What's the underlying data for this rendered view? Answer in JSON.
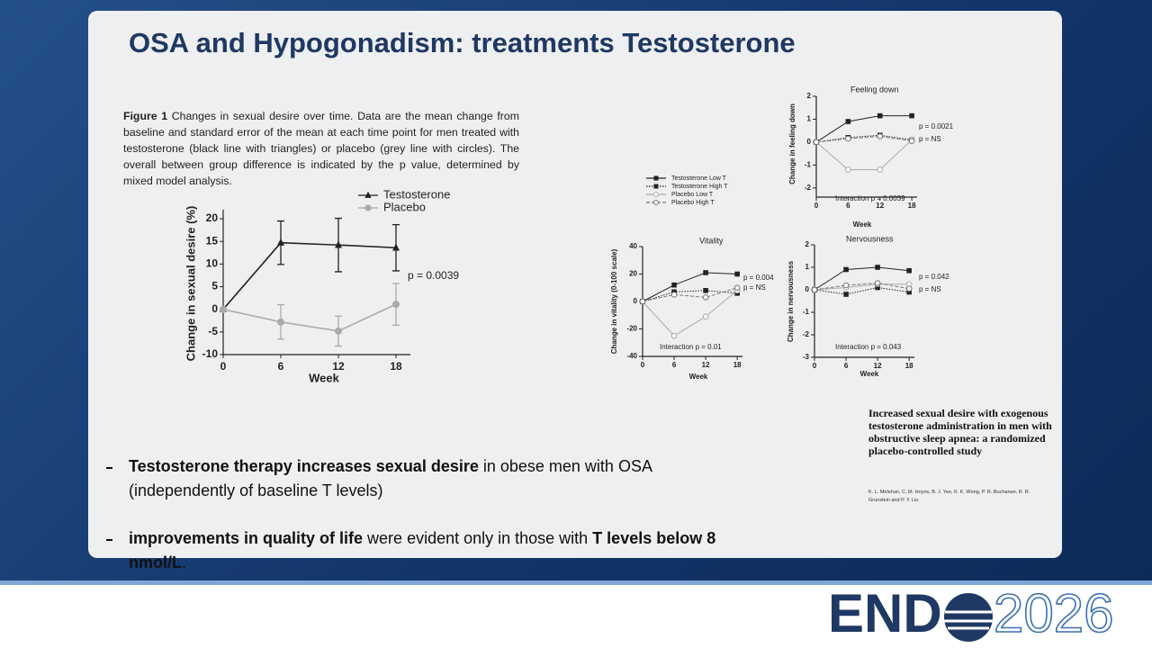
{
  "slide": {
    "title": "OSA and Hypogonadism: treatments Testosterone",
    "caption": [
      {
        "text": "Figure 1",
        "bold": true
      },
      {
        "text": " Changes in sexual desire over time. Data are the mean change from baseline and standard error of the mean at each time point for men treated with testosterone (black line with triangles) or placebo (grey line with circles). The overall between group difference is indicated by the p value, determined by mixed model analysis."
      }
    ],
    "bullets": [
      [
        {
          "text": "Testosterone therapy increases sexual desire",
          "bold": true
        },
        {
          "text": " in obese men with OSA (independently of baseline T levels)"
        }
      ],
      [
        {
          "text": "improvements in quality of life",
          "bold": true
        },
        {
          "text": " were evident only in those with "
        },
        {
          "text": "T levels below 8 nmol/L",
          "bold": true
        },
        {
          "text": "."
        }
      ]
    ],
    "citation": {
      "title": "Increased sexual desire with exogenous testosterone administration in men with obstructive sleep apnea: a randomized placebo-controlled study",
      "authors": "K. L. Melehan, C. M. Hoyos, B. J. Yee, K. K. Wong, P. R. Buchanan, R. R. Grunstein and P. Y. Liu"
    },
    "logo": {
      "left": "END",
      "right": "2026"
    }
  },
  "chart_data": [
    {
      "type": "line",
      "x": [
        0,
        6,
        12,
        18
      ],
      "xlim": [
        0,
        19.5
      ],
      "xticks": [
        0,
        6,
        12,
        18
      ],
      "ylim": [
        -10,
        22
      ],
      "yticks": [
        -10,
        -5,
        0,
        5,
        10,
        15,
        20
      ],
      "xlabel": "Week",
      "ylabel": "Change in sexual desire (%)",
      "annotations": [
        "p = 0.0039"
      ],
      "series": [
        {
          "name": "Testosterone",
          "color": "#222222",
          "marker": "triangle",
          "dash": "solid",
          "values": [
            0,
            14.7,
            14.2,
            13.6
          ],
          "errors": [
            0,
            4.8,
            5.9,
            5.1
          ]
        },
        {
          "name": "Placebo",
          "color": "#aaaaaa",
          "marker": "circle",
          "dash": "solid",
          "values": [
            0,
            -2.8,
            -4.8,
            1.1
          ],
          "errors": [
            0,
            3.8,
            3.3,
            4.6
          ]
        }
      ]
    },
    {
      "type": "line",
      "title": "Feeling down",
      "x": [
        0,
        6,
        12,
        18
      ],
      "xlim": [
        0,
        19
      ],
      "xticks": [
        0,
        6,
        12,
        18
      ],
      "ylim": [
        -2.4,
        2
      ],
      "yticks": [
        -2,
        -1,
        0,
        1,
        2
      ],
      "xlabel": "Week",
      "ylabel": "Change in feeling down",
      "annotations": [
        "p = 0.0021",
        "p = NS",
        "Interaction p = 0.0039"
      ],
      "series": [
        {
          "name": "Testosterone Low T",
          "color": "#222222",
          "marker": "square",
          "dash": "solid",
          "values": [
            0,
            0.9,
            1.15,
            1.15
          ]
        },
        {
          "name": "Testosterone High T",
          "color": "#222222",
          "marker": "square",
          "dash": "dotted",
          "values": [
            0,
            0.2,
            0.3,
            0.1
          ]
        },
        {
          "name": "Placebo Low T",
          "color": "#aaaaaa",
          "marker": "circle-open",
          "dash": "solid",
          "values": [
            0,
            -1.2,
            -1.2,
            0.1
          ]
        },
        {
          "name": "Placebo High T",
          "color": "#777777",
          "marker": "circle-open",
          "dash": "dashed",
          "values": [
            0,
            0.15,
            0.25,
            0.05
          ]
        }
      ]
    },
    {
      "type": "line",
      "title": "Vitality",
      "x": [
        0,
        6,
        12,
        18
      ],
      "xlim": [
        0,
        19
      ],
      "xticks": [
        0,
        6,
        12,
        18
      ],
      "ylim": [
        -40,
        40
      ],
      "yticks": [
        -40,
        -20,
        0,
        20,
        40
      ],
      "xlabel": "Week",
      "ylabel": "Change in vitality (0-100 scale)",
      "annotations": [
        "p = 0.004",
        "p = NS",
        "Interaction p = 0.01"
      ],
      "series": [
        {
          "color": "#222222",
          "marker": "square",
          "dash": "solid",
          "values": [
            0,
            12,
            21,
            20
          ]
        },
        {
          "color": "#222222",
          "marker": "square",
          "dash": "dotted",
          "values": [
            0,
            7,
            8,
            6
          ]
        },
        {
          "color": "#aaaaaa",
          "marker": "circle-open",
          "dash": "solid",
          "values": [
            0,
            -25,
            -11,
            8
          ]
        },
        {
          "color": "#777777",
          "marker": "circle-open",
          "dash": "dashed",
          "values": [
            0,
            5,
            3,
            10
          ]
        }
      ]
    },
    {
      "type": "line",
      "title": "Nervousness",
      "x": [
        0,
        6,
        12,
        18
      ],
      "xlim": [
        0,
        19
      ],
      "xticks": [
        0,
        6,
        12,
        18
      ],
      "ylim": [
        -3,
        2
      ],
      "yticks": [
        -3,
        -2,
        -1,
        0,
        1,
        2
      ],
      "xlabel": "Week",
      "ylabel": "Change in nervousness",
      "annotations": [
        "p = 0.042",
        "p = NS",
        "Interaction p = 0.043"
      ],
      "series": [
        {
          "color": "#222222",
          "marker": "square",
          "dash": "solid",
          "values": [
            0,
            0.9,
            1.0,
            0.85
          ]
        },
        {
          "color": "#222222",
          "marker": "square",
          "dash": "dotted",
          "values": [
            0,
            -0.2,
            0.1,
            -0.1
          ]
        },
        {
          "color": "#aaaaaa",
          "marker": "circle-open",
          "dash": "solid",
          "values": [
            0,
            0.1,
            0.25,
            0.25
          ]
        },
        {
          "color": "#777777",
          "marker": "circle-open",
          "dash": "dashed",
          "values": [
            0,
            0.2,
            0.3,
            0.05
          ]
        }
      ]
    }
  ]
}
